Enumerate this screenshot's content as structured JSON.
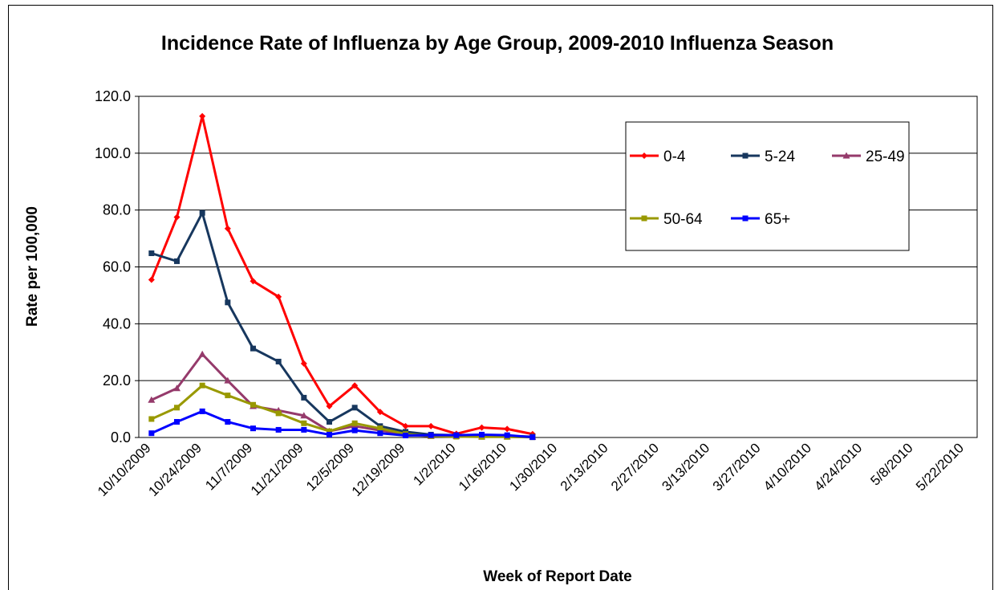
{
  "chart_data": {
    "type": "line",
    "title": "Incidence Rate of Influenza by Age Group, 2009-2010 Influenza Season",
    "x_label": "Week of Report Date",
    "y_label": "Rate per 100,000",
    "categories": [
      "10/10/2009",
      null,
      "10/24/2009",
      null,
      "11/7/2009",
      null,
      "11/21/2009",
      null,
      "12/5/2009",
      null,
      "12/19/2009",
      null,
      "1/2/2010",
      null,
      "1/16/2010",
      null,
      "1/30/2010",
      null,
      "2/13/2010",
      null,
      "2/27/2010",
      null,
      "3/13/2010",
      null,
      "3/27/2010",
      null,
      "4/10/2010",
      null,
      "4/24/2010",
      null,
      "5/8/2010",
      null,
      "5/22/2010"
    ],
    "series": [
      {
        "name": "0-4",
        "color": "#ff0000",
        "marker": "diamond",
        "values": [
          55.5,
          77.5,
          113.0,
          73.5,
          55.0,
          49.5,
          26.0,
          11.0,
          18.3,
          9.0,
          4.0,
          4.0,
          1.3,
          3.5,
          3.0,
          1.2,
          null,
          null,
          null,
          null,
          null,
          null,
          null,
          null,
          null,
          null,
          null,
          null,
          null,
          null,
          null,
          null,
          null
        ]
      },
      {
        "name": "5-24",
        "color": "#17375e",
        "marker": "square",
        "values": [
          64.8,
          62.0,
          79.0,
          47.5,
          31.3,
          26.7,
          14.0,
          5.5,
          10.5,
          4.0,
          2.0,
          1.0,
          0.8,
          0.5,
          0.5,
          0.3,
          null,
          null,
          null,
          null,
          null,
          null,
          null,
          null,
          null,
          null,
          null,
          null,
          null,
          null,
          null,
          null,
          null
        ]
      },
      {
        "name": "25-49",
        "color": "#953a6b",
        "marker": "triangle",
        "values": [
          13.2,
          17.3,
          29.3,
          20.0,
          11.0,
          9.5,
          7.7,
          2.2,
          4.0,
          2.5,
          1.0,
          0.5,
          0.5,
          0.3,
          0.3,
          0.2,
          null,
          null,
          null,
          null,
          null,
          null,
          null,
          null,
          null,
          null,
          null,
          null,
          null,
          null,
          null,
          null,
          null
        ]
      },
      {
        "name": "50-64",
        "color": "#999900",
        "marker": "square",
        "values": [
          6.5,
          10.5,
          18.3,
          14.8,
          11.5,
          8.5,
          5.0,
          2.2,
          5.0,
          3.2,
          1.2,
          0.5,
          0.3,
          0.2,
          0.2,
          0.1,
          null,
          null,
          null,
          null,
          null,
          null,
          null,
          null,
          null,
          null,
          null,
          null,
          null,
          null,
          null,
          null,
          null
        ]
      },
      {
        "name": "65+",
        "color": "#0000ff",
        "marker": "square",
        "values": [
          1.5,
          5.5,
          9.2,
          5.5,
          3.2,
          2.7,
          2.7,
          1.0,
          2.5,
          1.5,
          0.7,
          0.8,
          0.8,
          1.0,
          0.8,
          0.1,
          null,
          null,
          null,
          null,
          null,
          null,
          null,
          null,
          null,
          null,
          null,
          null,
          null,
          null,
          null,
          null,
          null
        ]
      }
    ],
    "ylim": [
      0,
      120
    ],
    "yticks": [
      {
        "value": 0,
        "label": "0.0"
      },
      {
        "value": 20,
        "label": "20.0"
      },
      {
        "value": 40,
        "label": "40.0"
      },
      {
        "value": 60,
        "label": "60.0"
      },
      {
        "value": 80,
        "label": "80.0"
      },
      {
        "value": 100,
        "label": "100.0"
      },
      {
        "value": 120,
        "label": "120.0"
      }
    ],
    "grid": true,
    "legend": "top-right"
  }
}
